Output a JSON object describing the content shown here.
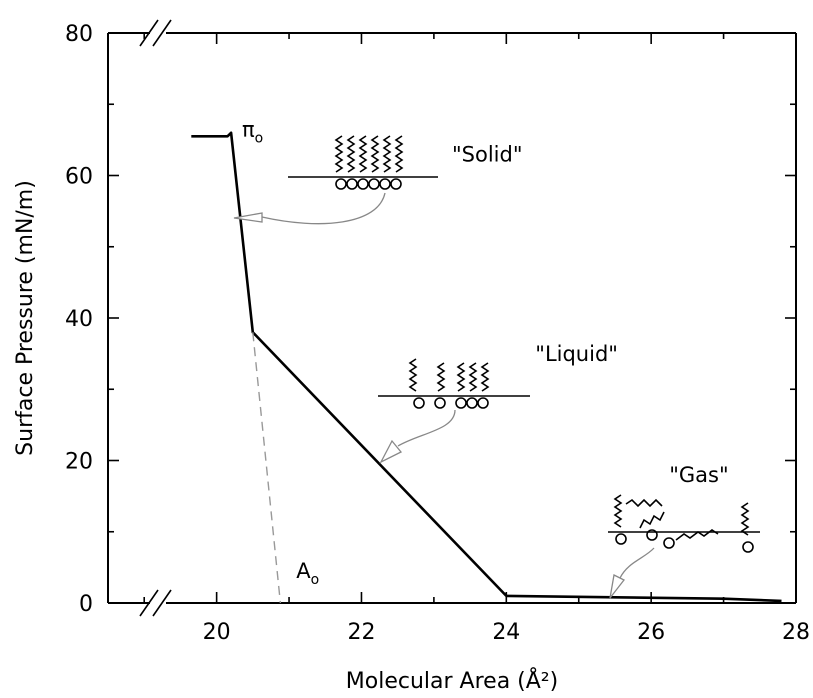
{
  "chart_data": {
    "type": "line",
    "title": "",
    "xlabel": "Molecular Area (Å²)",
    "ylabel": "Surface Pressure (mN/m)",
    "xlim": [
      18.5,
      28
    ],
    "ylim": [
      0,
      80
    ],
    "x_ticks": [
      "20",
      "22",
      "24",
      "26",
      "28"
    ],
    "y_ticks": [
      "0",
      "20",
      "40",
      "60",
      "80"
    ],
    "grid": false,
    "series": [
      {
        "style": "solid",
        "points": [
          [
            19.65,
            65.5
          ],
          [
            20.15,
            65.5
          ],
          [
            20.2,
            66
          ],
          [
            20.5,
            38
          ],
          [
            24.0,
            1.0
          ],
          [
            25.5,
            0.8
          ],
          [
            27.0,
            0.6
          ],
          [
            27.8,
            0.3
          ]
        ]
      },
      {
        "style": "dashed",
        "points": [
          [
            20.5,
            38
          ],
          [
            20.88,
            0
          ]
        ]
      }
    ],
    "annotations": [
      {
        "text": "\"Solid\"",
        "x": 23.25,
        "y": 62
      },
      {
        "text": "\"Liquid\"",
        "x": 24.4,
        "y": 34
      },
      {
        "text": "\"Gas\"",
        "x": 26.25,
        "y": 17
      },
      {
        "text": "π",
        "sub": "o",
        "x": 20.35,
        "y": 65.5
      },
      {
        "text": "A",
        "sub": "o",
        "x": 21.1,
        "y": 3.5
      }
    ]
  },
  "colors": {
    "line": "#000000",
    "dashed": "#999999",
    "arrow": "#888888"
  }
}
